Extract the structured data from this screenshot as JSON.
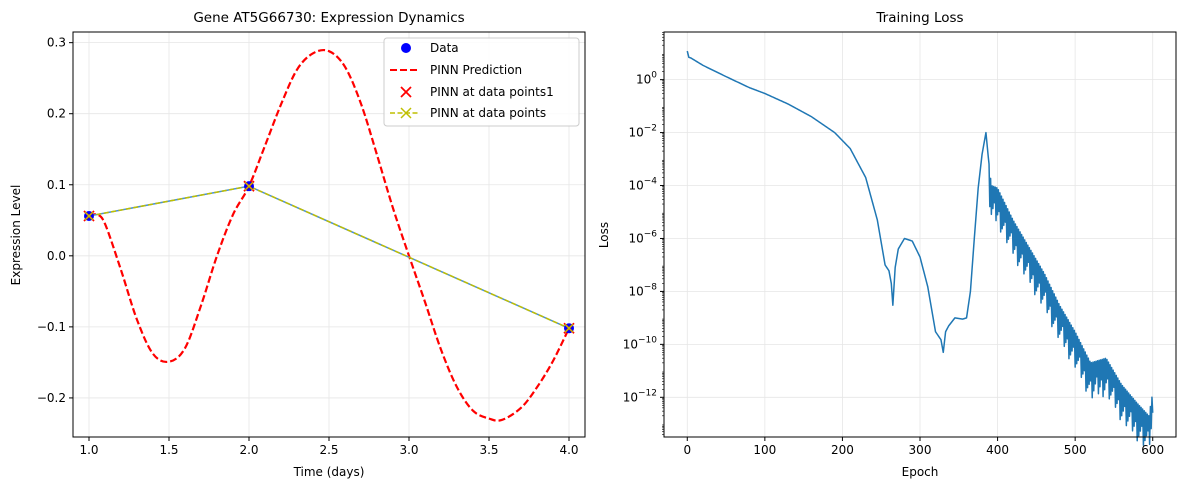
{
  "chart_data": [
    {
      "type": "line",
      "title": "Gene AT5G66730: Expression Dynamics",
      "xlabel": "Time (days)",
      "ylabel": "Expression Level",
      "xlim": [
        0.9,
        4.1
      ],
      "ylim": [
        -0.255,
        0.315
      ],
      "xticks": [
        1.0,
        1.5,
        2.0,
        2.5,
        3.0,
        3.5,
        4.0
      ],
      "xtick_labels": [
        "1.0",
        "1.5",
        "2.0",
        "2.5",
        "3.0",
        "3.5",
        "4.0"
      ],
      "yticks": [
        -0.2,
        -0.1,
        0.0,
        0.1,
        0.2,
        0.3
      ],
      "ytick_labels": [
        "−0.2",
        "−0.1",
        "0.0",
        "0.1",
        "0.2",
        "0.3"
      ],
      "grid": true,
      "legend_position": "top-right",
      "series": [
        {
          "name": "Data",
          "kind": "scatter",
          "marker": "circle",
          "color": "#0000ff",
          "x": [
            1.0,
            2.0,
            4.0
          ],
          "y": [
            0.056,
            0.098,
            -0.102
          ]
        },
        {
          "name": "PINN Prediction",
          "kind": "line",
          "style": "dashed",
          "color": "#ff0000",
          "x": [
            1.0,
            1.05,
            1.1,
            1.2,
            1.3,
            1.4,
            1.5,
            1.6,
            1.7,
            1.8,
            1.9,
            2.0,
            2.1,
            2.2,
            2.3,
            2.4,
            2.5,
            2.6,
            2.7,
            2.8,
            2.9,
            3.0,
            3.1,
            3.2,
            3.3,
            3.4,
            3.5,
            3.58,
            3.7,
            3.8,
            3.9,
            4.0
          ],
          "y": [
            0.056,
            0.058,
            0.045,
            -0.02,
            -0.09,
            -0.138,
            -0.149,
            -0.13,
            -0.07,
            0.0,
            0.058,
            0.098,
            0.155,
            0.213,
            0.262,
            0.285,
            0.288,
            0.266,
            0.214,
            0.142,
            0.067,
            0.0,
            -0.065,
            -0.132,
            -0.185,
            -0.218,
            -0.229,
            -0.231,
            -0.214,
            -0.185,
            -0.148,
            -0.102
          ]
        },
        {
          "name": "PINN at data points1",
          "kind": "scatter",
          "marker": "x",
          "color": "#ff0000",
          "x": [
            1.0,
            2.0,
            4.0
          ],
          "y": [
            0.056,
            0.098,
            -0.102
          ]
        },
        {
          "name": "PINN at data points",
          "kind": "line",
          "style": "dashed",
          "marker": "x",
          "color": "#bfbf00",
          "x": [
            1.0,
            2.0,
            4.0
          ],
          "y": [
            0.056,
            0.098,
            -0.102
          ]
        }
      ],
      "connecting_line": {
        "color": "#4a90d6",
        "x": [
          1.0,
          2.0,
          4.0
        ],
        "y": [
          0.056,
          0.098,
          -0.102
        ]
      }
    },
    {
      "type": "line",
      "title": "Training Loss",
      "xlabel": "Epoch",
      "ylabel": "Loss",
      "xlim": [
        -30,
        630
      ],
      "ylim_log10": [
        -13.5,
        1.8
      ],
      "y_scale": "log",
      "xticks": [
        0,
        100,
        200,
        300,
        400,
        500,
        600
      ],
      "xtick_labels": [
        "0",
        "100",
        "200",
        "300",
        "400",
        "500",
        "600"
      ],
      "yticks_log10": [
        0,
        -2,
        -4,
        -6,
        -8,
        -10,
        -12
      ],
      "ytick_labels": [
        "10^0",
        "10^-2",
        "10^-4",
        "10^-6",
        "10^-8",
        "10^-10",
        "10^-12"
      ],
      "grid": true,
      "series": [
        {
          "name": "",
          "color": "#1f77b4",
          "epoch": [
            0,
            2,
            5,
            20,
            50,
            80,
            100,
            130,
            160,
            190,
            210,
            230,
            245,
            255,
            260,
            263,
            265,
            268,
            272,
            280,
            290,
            300,
            310,
            320,
            327,
            330,
            333,
            337,
            345,
            355,
            360,
            365,
            370,
            375,
            380,
            385,
            388,
            392,
            400,
            420,
            440,
            460,
            480,
            500,
            520,
            540,
            560,
            580,
            595,
            600
          ],
          "loss": [
            12,
            7,
            6.5,
            3.5,
            1.3,
            0.5,
            0.3,
            0.12,
            0.04,
            0.01,
            0.0025,
            0.0002,
            5e-06,
            1e-07,
            6e-08,
            2e-08,
            3e-09,
            8e-08,
            4e-07,
            1e-06,
            8e-07,
            2e-07,
            1.5e-08,
            3e-10,
            1.5e-10,
            5e-11,
            3e-10,
            5e-10,
            1e-09,
            9e-10,
            1e-09,
            1e-08,
            1e-06,
            8e-05,
            0.0015,
            0.01,
            0.0012,
            0.0001,
            8e-05,
            5e-06,
            5e-07,
            5e-08,
            3e-09,
            3e-10,
            2e-11,
            3e-11,
            3e-12,
            6e-13,
            2e-13,
            1.5e-12
          ]
        }
      ]
    }
  ]
}
